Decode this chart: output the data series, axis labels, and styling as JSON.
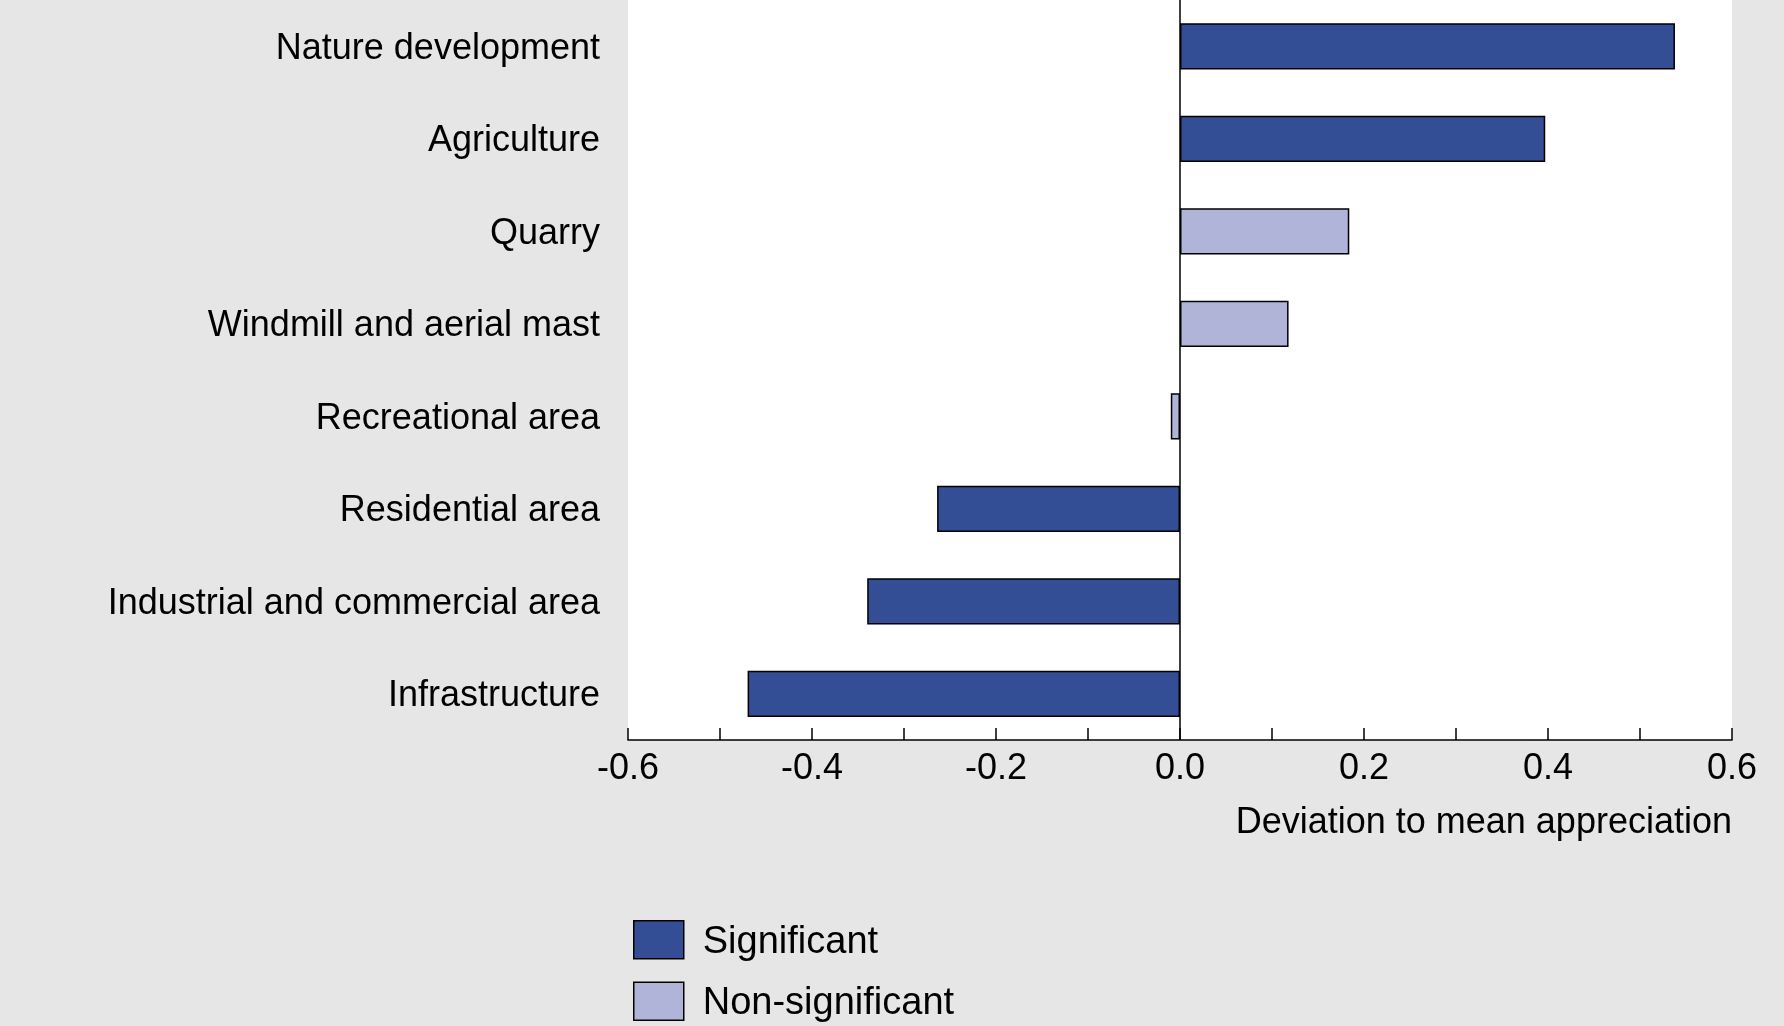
{
  "chart_data": {
    "type": "bar",
    "orientation": "horizontal",
    "stacked": true,
    "xlabel": "Deviation to mean appreciation",
    "categories": [
      "Nature development",
      "Agriculture",
      "Quarry",
      "Windmill and aerial mast",
      "Recreational area",
      "Residential area",
      "Industrial and commercial area",
      "Infrastructure"
    ],
    "series": [
      {
        "name": "Significant",
        "color": "#344e95",
        "values": [
          0.538,
          0.397,
          null,
          null,
          null,
          -0.264,
          -0.34,
          -0.47
        ]
      },
      {
        "name": "Non-significant",
        "color": "#b0b4d8",
        "values": [
          null,
          null,
          0.184,
          0.118,
          -0.01,
          null,
          null,
          null
        ]
      }
    ],
    "xlim": [
      -0.6,
      0.6
    ],
    "xticks": [
      -0.6,
      {
        "value": -0.5,
        "label": null
      },
      -0.4,
      {
        "value": -0.3,
        "label": null
      },
      -0.2,
      {
        "value": -0.1,
        "label": null
      },
      {
        "value": 0,
        "label": "0.0"
      },
      {
        "value": 0.1,
        "label": null
      },
      0.2,
      {
        "value": 0.3,
        "label": null
      },
      0.4,
      {
        "value": 0.5,
        "label": null
      },
      0.6
    ],
    "ref_lines": [
      {
        "axis": "x",
        "value": 0,
        "color": "#000000"
      }
    ],
    "legend": "bottom left"
  }
}
